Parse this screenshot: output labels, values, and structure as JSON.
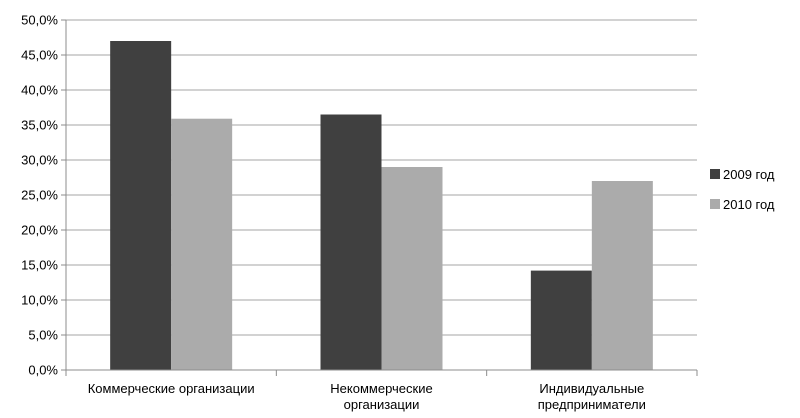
{
  "chart_data": {
    "type": "bar",
    "categories": [
      [
        "Коммерческие организации"
      ],
      [
        "Некоммерческие",
        "организации"
      ],
      [
        "Индивидуальные",
        "предприниматели"
      ]
    ],
    "series": [
      {
        "name": "2009 год",
        "values": [
          47.0,
          36.5,
          14.2
        ],
        "color": "#404040"
      },
      {
        "name": "2010 год",
        "values": [
          35.9,
          29.0,
          27.0
        ],
        "color": "#ababab"
      }
    ],
    "y_ticks": [
      "0,0%",
      "5,0%",
      "10,0%",
      "15,0%",
      "20,0%",
      "25,0%",
      "30,0%",
      "35,0%",
      "40,0%",
      "45,0%",
      "50,0%"
    ],
    "ylim": [
      0,
      50
    ],
    "grid": true,
    "legend_position": "right",
    "title": "",
    "xlabel": "",
    "ylabel": ""
  }
}
